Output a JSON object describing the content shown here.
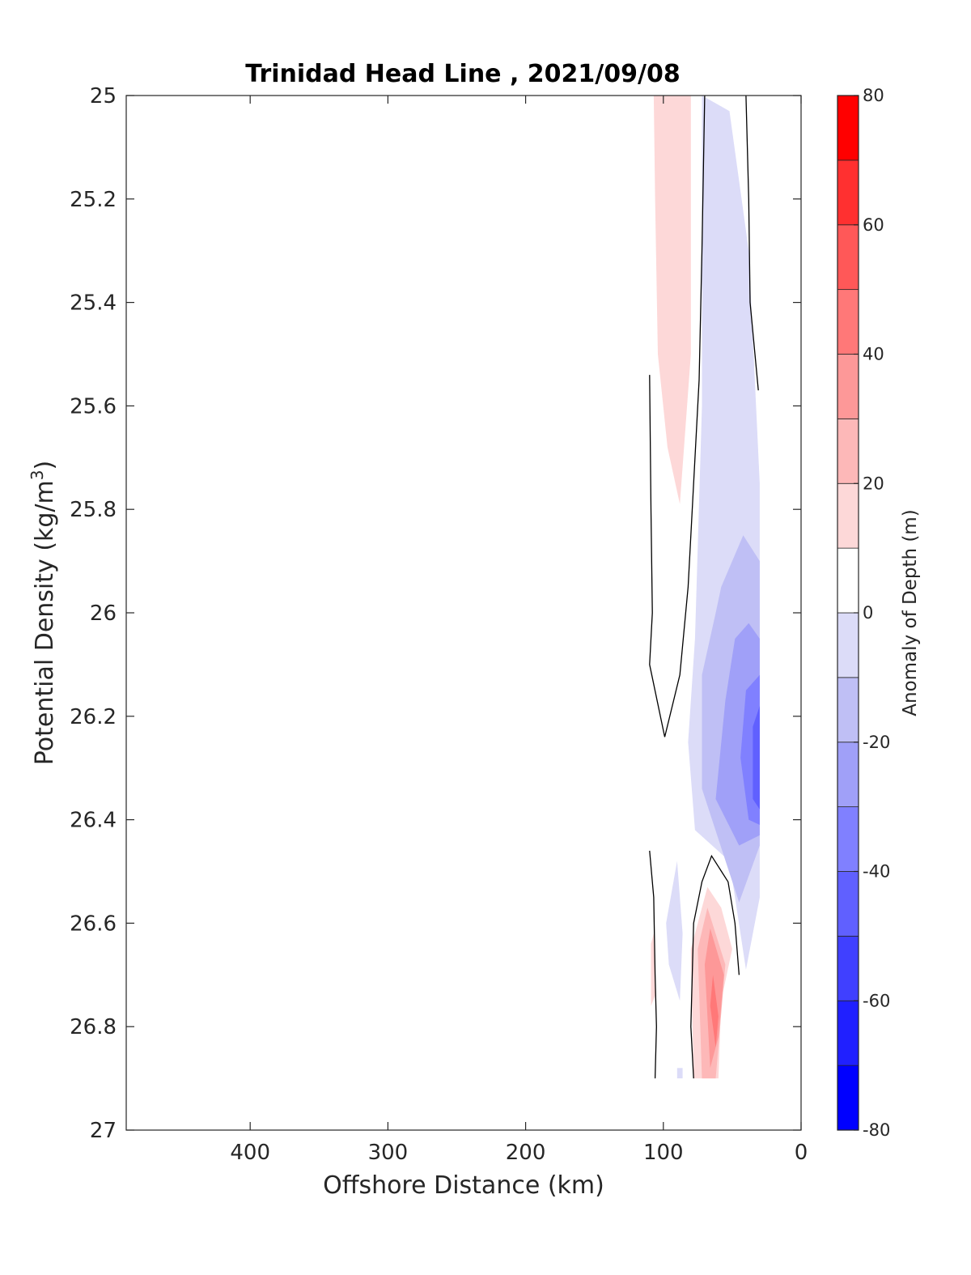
{
  "chart_data": {
    "type": "contour",
    "title": "Trinidad Head Line , 2021/09/08",
    "xlabel": "Offshore Distance (km)",
    "ylabel_main": "Potential Density (kg/m",
    "ylabel_sup": "3",
    "ylabel_close": ")",
    "xlim": [
      490,
      0
    ],
    "ylim": [
      25,
      27
    ],
    "x_reversed": true,
    "y_reversed": true,
    "x_ticks": [
      400,
      300,
      200,
      100,
      0
    ],
    "y_ticks": [
      25,
      25.2,
      25.4,
      25.6,
      25.8,
      26,
      26.2,
      26.4,
      26.6,
      26.8,
      27
    ],
    "y_tick_labels": [
      "25",
      "25.2",
      "25.4",
      "25.6",
      "25.8",
      "26",
      "26.2",
      "26.4",
      "26.6",
      "26.8",
      "27"
    ],
    "colorbar": {
      "label": "Anomaly of Depth (m)",
      "range": [
        -80,
        80
      ],
      "levels": [
        -80,
        -70,
        -60,
        -50,
        -40,
        -30,
        -20,
        -10,
        0,
        10,
        20,
        30,
        40,
        50,
        60,
        70,
        80
      ],
      "tick_values": [
        80,
        60,
        40,
        20,
        0,
        -20,
        -40,
        -60,
        -80
      ],
      "tick_labels": [
        "80",
        "60",
        "40",
        "20",
        "0",
        "-20",
        "-40",
        "-60",
        "-80"
      ],
      "colors": [
        "#0000ff",
        "#2020ff",
        "#4040ff",
        "#6060ff",
        "#8080ff",
        "#a0a0f8",
        "#bfbff5",
        "#dcdcf8",
        "#ffffff",
        "#fdd8d8",
        "#fdb8b8",
        "#fd9898",
        "#ff7878",
        "#ff5858",
        "#ff3030",
        "#ff0000"
      ]
    },
    "regions": [
      {
        "name": "positive anomaly near surface",
        "level": 10,
        "points": [
          [
            107,
            25.0
          ],
          [
            80,
            25.0
          ],
          [
            80,
            25.5
          ],
          [
            88,
            25.79
          ],
          [
            97,
            25.68
          ],
          [
            104,
            25.5
          ],
          [
            106,
            25.2
          ]
        ]
      },
      {
        "name": "negative anomaly shelf band",
        "level": -10,
        "points": [
          [
            72,
            25.0
          ],
          [
            52,
            25.03
          ],
          [
            38,
            25.3
          ],
          [
            30,
            25.75
          ],
          [
            30,
            26.55
          ],
          [
            40,
            26.69
          ],
          [
            52,
            26.48
          ],
          [
            77,
            26.42
          ],
          [
            82,
            26.25
          ],
          [
            77,
            26.05
          ],
          [
            72,
            25.6
          ]
        ]
      },
      {
        "name": "negative anomaly core",
        "level": -20,
        "points": [
          [
            58,
            25.95
          ],
          [
            42,
            25.85
          ],
          [
            30,
            25.9
          ],
          [
            30,
            26.45
          ],
          [
            45,
            26.56
          ],
          [
            72,
            26.34
          ],
          [
            72,
            26.12
          ],
          [
            62,
            26.0
          ]
        ]
      },
      {
        "name": "negative anomaly inner core",
        "level": -30,
        "points": [
          [
            48,
            26.05
          ],
          [
            38,
            26.02
          ],
          [
            30,
            26.05
          ],
          [
            30,
            26.43
          ],
          [
            45,
            26.45
          ],
          [
            62,
            26.36
          ],
          [
            55,
            26.17
          ]
        ]
      },
      {
        "name": "negative anomaly deep core",
        "level": -40,
        "points": [
          [
            40,
            26.15
          ],
          [
            30,
            26.12
          ],
          [
            30,
            26.41
          ],
          [
            38,
            26.4
          ],
          [
            44,
            26.28
          ]
        ]
      },
      {
        "name": "negative anomaly strongest",
        "level": -50,
        "points": [
          [
            35,
            26.22
          ],
          [
            30,
            26.18
          ],
          [
            30,
            26.38
          ],
          [
            35,
            26.36
          ]
        ]
      },
      {
        "name": "small negative anomaly",
        "level": -10,
        "points": [
          [
            90,
            26.48
          ],
          [
            98,
            26.6
          ],
          [
            96,
            26.68
          ],
          [
            88,
            26.75
          ],
          [
            86,
            26.62
          ]
        ]
      },
      {
        "name": "small negative patch bottom",
        "level": -10,
        "points": [
          [
            90,
            26.88
          ],
          [
            86,
            26.88
          ],
          [
            86,
            26.9
          ],
          [
            90,
            26.9
          ]
        ]
      },
      {
        "name": "positive anomaly bottom",
        "level": 10,
        "points": [
          [
            68,
            26.53
          ],
          [
            80,
            26.65
          ],
          [
            78,
            26.9
          ],
          [
            60,
            26.9
          ],
          [
            58,
            26.75
          ],
          [
            50,
            26.65
          ],
          [
            58,
            26.57
          ]
        ]
      },
      {
        "name": "positive anomaly bottom mid",
        "level": 20,
        "points": [
          [
            68,
            26.57
          ],
          [
            75,
            26.65
          ],
          [
            72,
            26.9
          ],
          [
            62,
            26.9
          ],
          [
            55,
            26.68
          ]
        ]
      },
      {
        "name": "positive anomaly bottom core",
        "level": 30,
        "points": [
          [
            66,
            26.61
          ],
          [
            70,
            26.68
          ],
          [
            66,
            26.88
          ],
          [
            60,
            26.82
          ],
          [
            56,
            26.7
          ]
        ]
      },
      {
        "name": "positive anomaly bottom peak",
        "level": 40,
        "points": [
          [
            64,
            26.7
          ],
          [
            66,
            26.76
          ],
          [
            62,
            26.84
          ],
          [
            60,
            26.78
          ]
        ]
      },
      {
        "name": "tiny positive patch",
        "level": 10,
        "points": [
          [
            109,
            26.64
          ],
          [
            107,
            26.62
          ],
          [
            106,
            26.74
          ],
          [
            109,
            26.76
          ]
        ]
      }
    ],
    "contour_lines": [
      {
        "level": 0,
        "points": [
          [
            70,
            25.0
          ],
          [
            72,
            25.3
          ],
          [
            74,
            25.55
          ],
          [
            78,
            25.75
          ],
          [
            82,
            25.95
          ],
          [
            88,
            26.12
          ],
          [
            99,
            26.24
          ],
          [
            110,
            26.1
          ],
          [
            108,
            26.0
          ],
          [
            109,
            25.8
          ],
          [
            110,
            25.54
          ]
        ]
      },
      {
        "level": 0,
        "points": [
          [
            40,
            25.0
          ],
          [
            38,
            25.2
          ],
          [
            37,
            25.4
          ],
          [
            31,
            25.57
          ]
        ]
      },
      {
        "level": 0,
        "points": [
          [
            110,
            26.46
          ],
          [
            107,
            26.55
          ],
          [
            106,
            26.7
          ],
          [
            105,
            26.8
          ],
          [
            106,
            26.9
          ]
        ]
      },
      {
        "level": 0,
        "points": [
          [
            45,
            26.7
          ],
          [
            48,
            26.6
          ],
          [
            53,
            26.52
          ],
          [
            65,
            26.47
          ],
          [
            72,
            26.52
          ],
          [
            78,
            26.6
          ],
          [
            80,
            26.8
          ],
          [
            78,
            26.9
          ]
        ]
      }
    ]
  }
}
